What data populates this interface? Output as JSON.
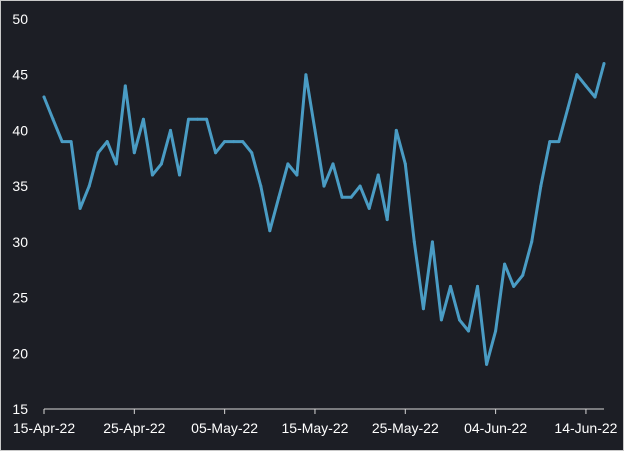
{
  "chart_data": {
    "type": "line",
    "title": "",
    "xlabel": "",
    "ylabel": "",
    "ylim": [
      15,
      50
    ],
    "yticks": [
      15,
      20,
      25,
      30,
      35,
      40,
      45,
      50
    ],
    "xticks": [
      "15-Apr-22",
      "25-Apr-22",
      "05-May-22",
      "15-May-22",
      "25-May-22",
      "04-Jun-22",
      "14-Jun-22"
    ],
    "x_start": "2022-04-15",
    "x_end": "2022-06-16",
    "grid": false,
    "legend": "none",
    "colors": {
      "background": "#1c1e25",
      "line": "#4a9cc4",
      "axis": "#d8d8d8",
      "text": "#ffffff"
    },
    "series": [
      {
        "x": [
          "2022-04-15",
          "2022-04-16",
          "2022-04-17",
          "2022-04-18",
          "2022-04-19",
          "2022-04-20",
          "2022-04-21",
          "2022-04-22",
          "2022-04-23",
          "2022-04-24",
          "2022-04-25",
          "2022-04-26",
          "2022-04-27",
          "2022-04-28",
          "2022-04-29",
          "2022-04-30",
          "2022-05-01",
          "2022-05-02",
          "2022-05-03",
          "2022-05-04",
          "2022-05-05",
          "2022-05-06",
          "2022-05-07",
          "2022-05-08",
          "2022-05-09",
          "2022-05-10",
          "2022-05-11",
          "2022-05-12",
          "2022-05-13",
          "2022-05-14",
          "2022-05-15",
          "2022-05-16",
          "2022-05-17",
          "2022-05-18",
          "2022-05-19",
          "2022-05-20",
          "2022-05-21",
          "2022-05-22",
          "2022-05-23",
          "2022-05-24",
          "2022-05-25",
          "2022-05-26",
          "2022-05-27",
          "2022-05-28",
          "2022-05-29",
          "2022-05-30",
          "2022-05-31",
          "2022-06-01",
          "2022-06-02",
          "2022-06-03",
          "2022-06-04",
          "2022-06-05",
          "2022-06-06",
          "2022-06-07",
          "2022-06-08",
          "2022-06-09",
          "2022-06-10",
          "2022-06-11",
          "2022-06-12",
          "2022-06-13",
          "2022-06-14",
          "2022-06-15",
          "2022-06-16"
        ],
        "y": [
          43,
          41,
          39,
          39,
          33,
          35,
          38,
          39,
          37,
          44,
          38,
          41,
          36,
          37,
          40,
          36,
          41,
          41,
          41,
          38,
          39,
          39,
          39,
          38,
          35,
          31,
          34,
          37,
          36,
          45,
          40,
          35,
          37,
          34,
          34,
          35,
          33,
          36,
          32,
          40,
          37,
          30,
          24,
          30,
          23,
          26,
          23,
          22,
          26,
          19,
          22,
          28,
          26,
          27,
          30,
          35,
          39,
          39,
          42,
          45,
          44,
          43,
          46
        ]
      }
    ]
  }
}
